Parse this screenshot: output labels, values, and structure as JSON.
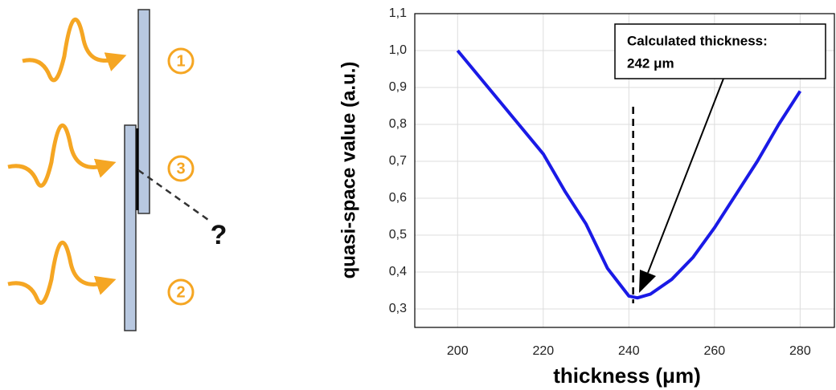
{
  "diagram": {
    "labels": [
      "1",
      "3",
      "2"
    ],
    "question": "?"
  },
  "chart_data": {
    "type": "line",
    "x_label": "thickness (μm)",
    "y_label": "quasi-space value (a.u.)",
    "x": [
      200,
      210,
      220,
      225,
      230,
      235,
      240,
      242,
      245,
      250,
      255,
      260,
      265,
      270,
      275,
      280
    ],
    "values": [
      1.0,
      0.86,
      0.72,
      0.62,
      0.53,
      0.41,
      0.335,
      0.33,
      0.34,
      0.38,
      0.44,
      0.52,
      0.61,
      0.7,
      0.8,
      0.89
    ],
    "color": "#1a1ae6",
    "xlim": [
      190,
      288
    ],
    "ylim": [
      0.25,
      1.1
    ],
    "xticks": [
      200,
      220,
      240,
      260,
      280
    ],
    "yticks": [
      {
        "value": 0.3,
        "label": "0,3"
      },
      {
        "value": 0.4,
        "label": "0,4"
      },
      {
        "value": 0.5,
        "label": "0,5"
      },
      {
        "value": 0.6,
        "label": "0,6"
      },
      {
        "value": 0.7,
        "label": "0,7"
      },
      {
        "value": 0.8,
        "label": "0,8"
      },
      {
        "value": 0.9,
        "label": "0,9"
      },
      {
        "value": 1.0,
        "label": "1,0"
      },
      {
        "value": 1.1,
        "label": "1,1"
      }
    ],
    "grid": true,
    "vline": 241,
    "annotation": [
      "Calculated thickness:",
      "242 μm"
    ]
  }
}
